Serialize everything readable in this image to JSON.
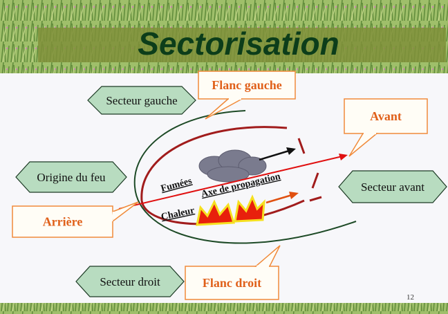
{
  "title": "Sectorisation",
  "sectors": [
    "Secteur gauche",
    "Origine du feu",
    "Secteur avant",
    "Secteur droit"
  ],
  "callouts": [
    "Flanc gauche",
    "Avant",
    "Arrière",
    "Flanc droit"
  ],
  "labels": {
    "smoke": "Fumées",
    "axis": "Axe de propagation",
    "heat": "Chaleur"
  },
  "page_number": "12"
}
